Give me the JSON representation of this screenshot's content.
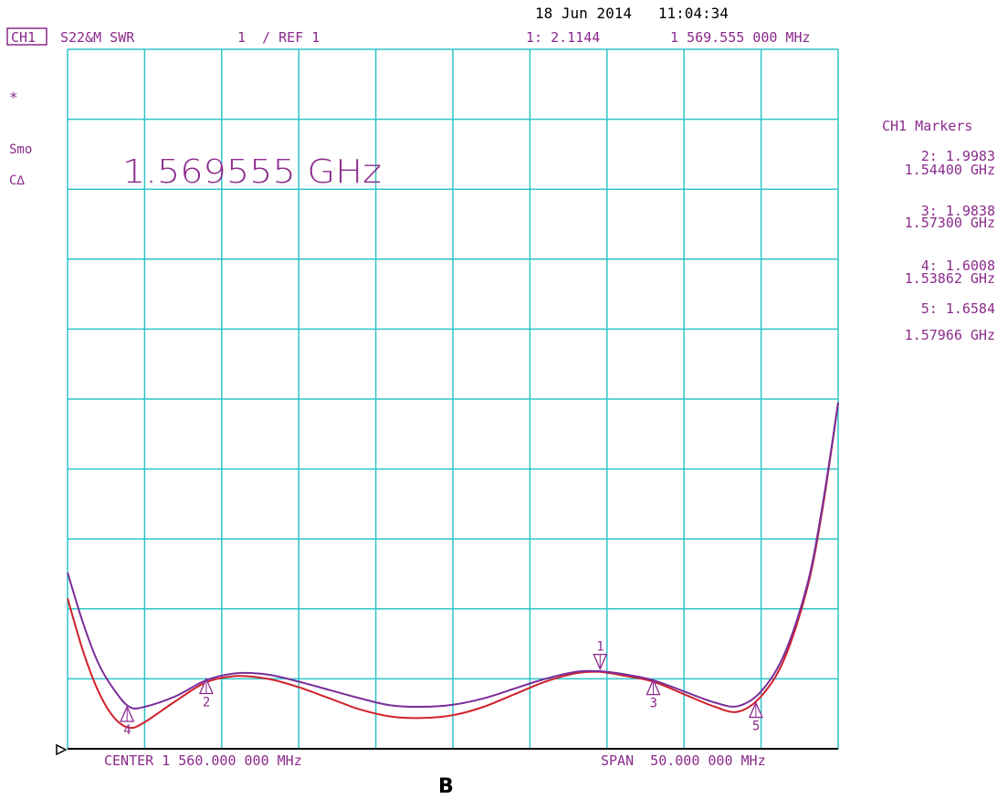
{
  "header": {
    "date_time": "18 Jun 2014   11:04:34",
    "channel": "CH1",
    "measurement": "S22&M SWR",
    "scale": "1  / REF 1",
    "active_marker_readout": "1: 2.1144",
    "active_marker_freq": "1 569.555 000 MHz"
  },
  "left_status": {
    "star": "*",
    "smoothing": "Smo",
    "delta": "C∆"
  },
  "annotation": "1.569555 GHz",
  "markers_panel": {
    "title": "CH1 Markers",
    "entries": [
      {
        "value": "2: 1.9983",
        "freq": "1.54400 GHz"
      },
      {
        "value": "3: 1.9838",
        "freq": "1.57300 GHz"
      },
      {
        "value": "4: 1.6008",
        "freq": "1.53862 GHz"
      },
      {
        "value": "5: 1.6584",
        "freq": "1.57966 GHz"
      }
    ]
  },
  "footer": {
    "center": "CENTER 1 560.000 000 MHz",
    "span": "SPAN  50.000 000 MHz"
  },
  "caption": "B",
  "colors": {
    "grid": "#2ec4c8",
    "text": "#8b2a8b",
    "trace_purple": "#7a2e9a",
    "trace_red": "#d0202a",
    "axis": "#000000"
  },
  "chart_data": {
    "type": "line",
    "xlabel": "",
    "ylabel": "",
    "xlim": [
      1535,
      1585
    ],
    "ylim": [
      1.0,
      11.0
    ],
    "x_unit": "MHz",
    "grid": true,
    "series": [
      {
        "color": "#7a2e9a",
        "x": [
          1535,
          1536,
          1537,
          1538,
          1539,
          1540,
          1542,
          1544,
          1546,
          1548,
          1550,
          1552,
          1554,
          1556,
          1558,
          1560,
          1562,
          1564,
          1566,
          1568,
          1569.5,
          1571,
          1573,
          1575,
          1577,
          1578.5,
          1580,
          1581.5,
          1583,
          1584,
          1585
        ],
        "y": [
          3.52,
          2.8,
          2.22,
          1.85,
          1.6,
          1.6,
          1.75,
          1.98,
          2.08,
          2.06,
          1.96,
          1.84,
          1.72,
          1.62,
          1.6,
          1.63,
          1.72,
          1.86,
          2.0,
          2.1,
          2.11,
          2.07,
          1.98,
          1.82,
          1.66,
          1.61,
          1.82,
          2.35,
          3.35,
          4.5,
          5.95
        ]
      },
      {
        "color": "#d0202a",
        "x": [
          1535,
          1536,
          1537,
          1538,
          1539,
          1540,
          1542,
          1544,
          1546,
          1548,
          1550,
          1552,
          1554,
          1556,
          1558,
          1560,
          1562,
          1564,
          1566,
          1568,
          1569.5,
          1571,
          1573,
          1575,
          1577,
          1578.5,
          1580,
          1581.5,
          1583,
          1584,
          1585
        ],
        "y": [
          3.15,
          2.4,
          1.82,
          1.45,
          1.3,
          1.38,
          1.68,
          1.95,
          2.04,
          2.0,
          1.88,
          1.72,
          1.56,
          1.46,
          1.44,
          1.48,
          1.6,
          1.78,
          1.96,
          2.08,
          2.1,
          2.05,
          1.96,
          1.78,
          1.6,
          1.53,
          1.75,
          2.28,
          3.3,
          4.45,
          5.95
        ]
      }
    ],
    "markers": [
      {
        "label": "1",
        "x": 1569.555,
        "y": 2.1144,
        "pointing": "down",
        "label_pos": "above"
      },
      {
        "label": "2",
        "x": 1544.0,
        "y": 1.9983,
        "pointing": "up",
        "label_pos": "below"
      },
      {
        "label": "3",
        "x": 1573.0,
        "y": 1.9838,
        "pointing": "up",
        "label_pos": "below"
      },
      {
        "label": "4",
        "x": 1538.862,
        "y": 1.6008,
        "pointing": "up",
        "label_pos": "below"
      },
      {
        "label": "5",
        "x": 1579.66,
        "y": 1.6584,
        "pointing": "up",
        "label_pos": "below"
      }
    ],
    "reference_level": 1
  }
}
